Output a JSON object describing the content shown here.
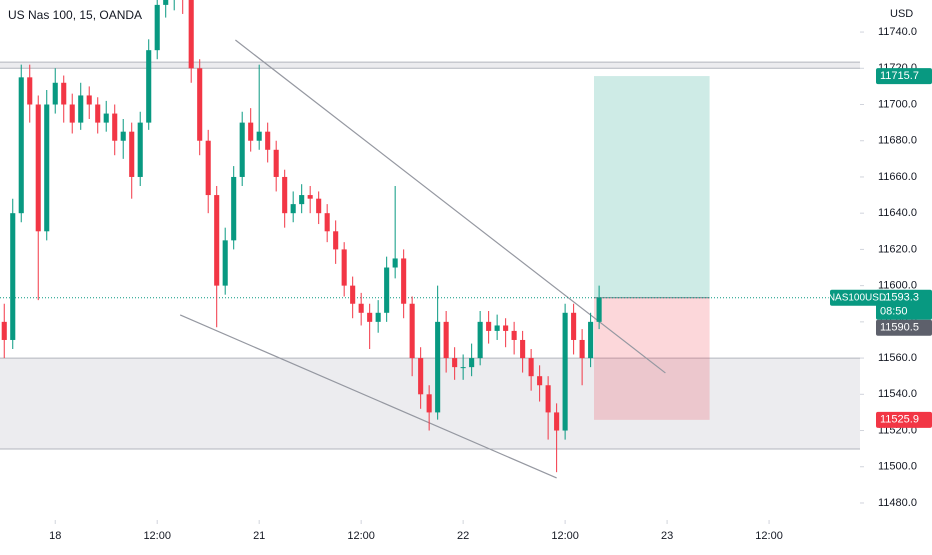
{
  "chart_data": {
    "type": "candlestick",
    "title": "US Nas 100, 15, OANDA",
    "currency": "USD",
    "symbol": "NAS100USD",
    "countdown": "08:50",
    "bid": 11590.5,
    "up_color": "#089981",
    "down_color": "#f23645",
    "x": [
      -6,
      -5,
      -4,
      -3,
      -2,
      -1,
      0,
      1,
      2,
      3,
      4,
      5,
      6,
      7,
      8,
      9,
      10,
      11,
      12,
      13,
      14,
      15,
      16,
      17,
      18,
      19,
      20,
      21,
      22,
      23,
      24,
      25,
      26,
      27,
      28,
      29,
      30,
      31,
      32,
      33,
      34,
      35,
      36,
      37,
      38,
      39,
      40,
      41,
      42,
      43,
      44,
      45,
      46,
      47,
      48,
      49,
      50,
      51,
      52,
      53,
      54,
      55,
      56,
      57,
      58,
      59,
      60,
      61,
      62,
      63,
      64
    ],
    "open": [
      11580,
      11570,
      11640,
      11715,
      11700,
      11630,
      11700,
      11712,
      11700,
      11690,
      11705,
      11700,
      11690,
      11695,
      11680,
      11685,
      11660,
      11690,
      11730,
      11755,
      11760,
      11765,
      11760,
      11720,
      11680,
      11650,
      11600,
      11625,
      11660,
      11690,
      11680,
      11685,
      11675,
      11660,
      11640,
      11645,
      11650,
      11648,
      11640,
      11630,
      11620,
      11600,
      11590,
      11585,
      11580,
      11585,
      11610,
      11615,
      11590,
      11560,
      11540,
      11530,
      11580,
      11560,
      11555,
      11555,
      11560,
      11580,
      11575,
      11578,
      11575,
      11570,
      11560,
      11550,
      11545,
      11530,
      11520,
      11585,
      11570,
      11560,
      11580
    ],
    "high": [
      11590,
      11648,
      11722,
      11722,
      11705,
      11708,
      11720,
      11716,
      11706,
      11712,
      11710,
      11704,
      11702,
      11700,
      11692,
      11690,
      11696,
      11736,
      11762,
      11770,
      11772,
      11770,
      11764,
      11725,
      11686,
      11655,
      11632,
      11666,
      11696,
      11698,
      11722,
      11690,
      11680,
      11664,
      11652,
      11656,
      11655,
      11652,
      11645,
      11636,
      11624,
      11605,
      11596,
      11590,
      11592,
      11616,
      11655,
      11620,
      11594,
      11566,
      11545,
      11600,
      11586,
      11566,
      11562,
      11568,
      11586,
      11586,
      11584,
      11582,
      11580,
      11575,
      11565,
      11556,
      11550,
      11535,
      11590,
      11590,
      11576,
      11585,
      11600
    ],
    "low": [
      11560,
      11565,
      11635,
      11690,
      11592,
      11625,
      11695,
      11690,
      11684,
      11686,
      11692,
      11684,
      11685,
      11672,
      11670,
      11648,
      11655,
      11686,
      11725,
      11748,
      11752,
      11750,
      11712,
      11672,
      11640,
      11577,
      11595,
      11620,
      11655,
      11674,
      11675,
      11668,
      11652,
      11632,
      11635,
      11640,
      11640,
      11634,
      11624,
      11612,
      11594,
      11582,
      11578,
      11565,
      11574,
      11580,
      11604,
      11582,
      11550,
      11532,
      11520,
      11526,
      11552,
      11548,
      11548,
      11550,
      11556,
      11568,
      11570,
      11566,
      11562,
      11552,
      11542,
      11536,
      11515,
      11497,
      11515,
      11562,
      11545,
      11555,
      11576
    ],
    "close": [
      11570,
      11640,
      11715,
      11700,
      11630,
      11700,
      11712,
      11700,
      11690,
      11705,
      11700,
      11690,
      11695,
      11680,
      11685,
      11660,
      11690,
      11730,
      11755,
      11760,
      11765,
      11760,
      11720,
      11680,
      11650,
      11600,
      11625,
      11660,
      11690,
      11680,
      11685,
      11675,
      11660,
      11640,
      11645,
      11650,
      11648,
      11640,
      11630,
      11620,
      11600,
      11590,
      11585,
      11580,
      11585,
      11610,
      11615,
      11590,
      11560,
      11540,
      11530,
      11580,
      11560,
      11555,
      11555,
      11560,
      11580,
      11575,
      11578,
      11575,
      11570,
      11560,
      11550,
      11545,
      11530,
      11520,
      11585,
      11570,
      11560,
      11580,
      11593.3
    ],
    "xlim": [
      -6.5,
      94.7
    ],
    "xticks": [
      {
        "value": 0,
        "label": "18"
      },
      {
        "value": 12,
        "label": "12:00"
      },
      {
        "value": 24,
        "label": "21"
      },
      {
        "value": 36,
        "label": "12:00"
      },
      {
        "value": 48,
        "label": "22"
      },
      {
        "value": 60,
        "label": "12:00"
      },
      {
        "value": 72,
        "label": "23"
      },
      {
        "value": 84,
        "label": "12:00"
      }
    ],
    "ylim": [
      11470.6,
      11757.7
    ],
    "yticks": [
      {
        "value": 11480,
        "label": "11480.0"
      },
      {
        "value": 11500,
        "label": "11500.0"
      },
      {
        "value": 11520,
        "label": "11520.0"
      },
      {
        "value": 11540,
        "label": "11540.0"
      },
      {
        "value": 11560,
        "label": "11560.0"
      },
      {
        "value": 11580,
        "label": "11580.0"
      },
      {
        "value": 11600,
        "label": "11600.0"
      },
      {
        "value": 11620,
        "label": "11620.0"
      },
      {
        "value": 11640,
        "label": "11640.0"
      },
      {
        "value": 11660,
        "label": "11660.0"
      },
      {
        "value": 11680,
        "label": "11680.0"
      },
      {
        "value": 11700,
        "label": "11700.0"
      },
      {
        "value": 11720,
        "label": "11720.0"
      },
      {
        "value": 11740,
        "label": "11740.0"
      }
    ],
    "zones": [
      {
        "from": 11720,
        "to": 11723.4
      },
      {
        "from": 11509.8,
        "to": 11560
      }
    ],
    "trendlines": [
      {
        "x": [
          21.2,
          71.8
        ],
        "y": [
          11735.6,
          11551.8
        ]
      },
      {
        "x": [
          14.7,
          59
        ],
        "y": [
          11583.8,
          11493.8
        ]
      }
    ],
    "position": {
      "x": [
        63.4,
        77
      ],
      "entry": 11593.3,
      "target": 11715.7,
      "stop": 11525.9
    }
  }
}
